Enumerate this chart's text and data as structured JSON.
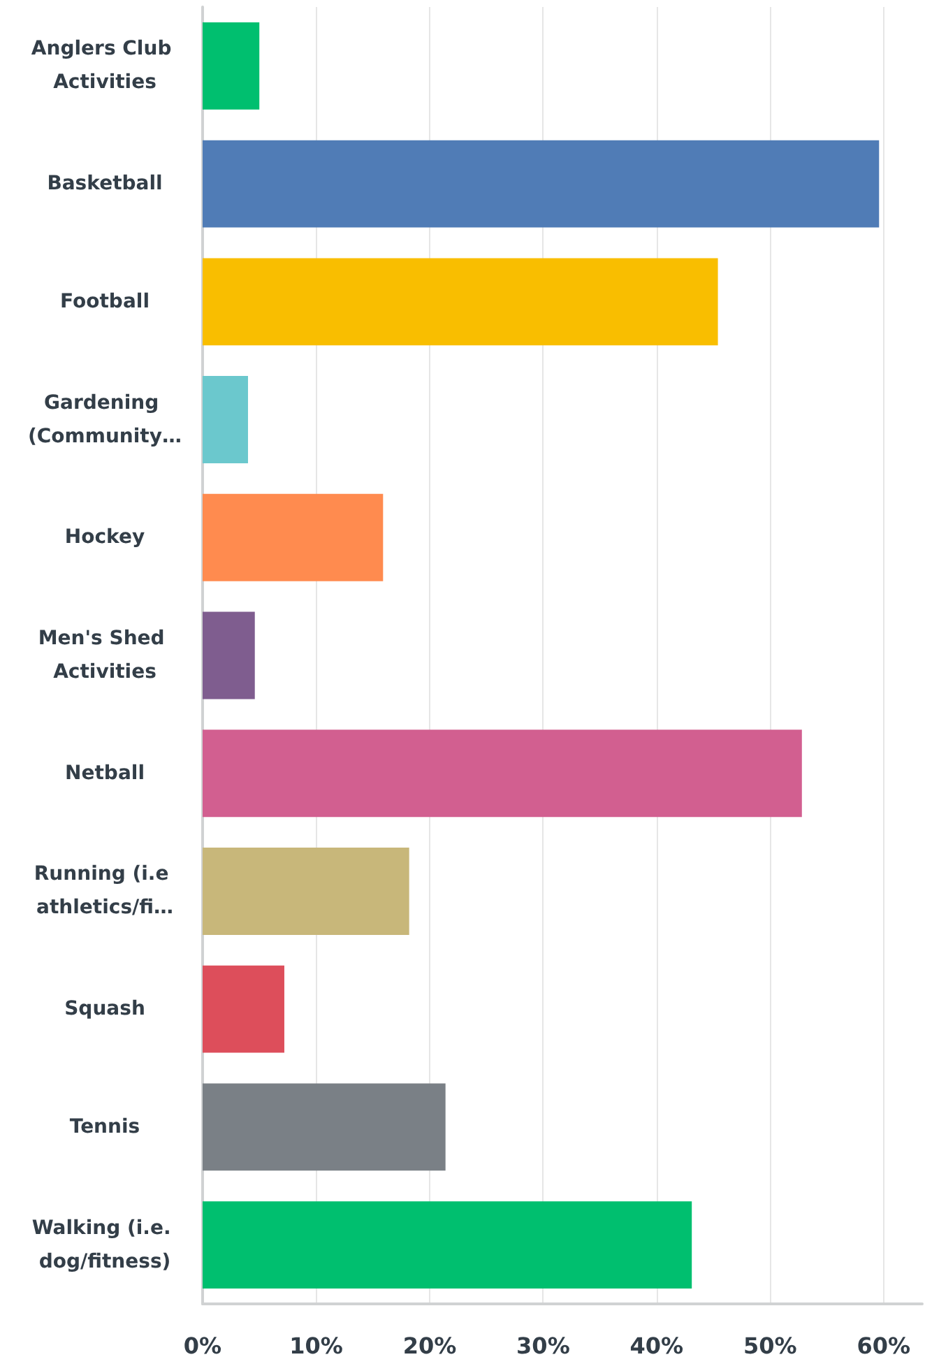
{
  "chart_data": {
    "type": "bar",
    "orientation": "horizontal",
    "categories": [
      "Anglers Club Activities",
      "Basketball",
      "Football",
      "Gardening (Community…",
      "Hockey",
      "Men's Shed Activities",
      "Netball",
      "Running (i.e athletics/fi…",
      "Squash",
      "Tennis",
      "Walking (i.e. dog/fitness)"
    ],
    "values": [
      5.0,
      59.6,
      45.4,
      4.0,
      15.9,
      4.6,
      52.8,
      18.2,
      7.2,
      21.4,
      43.1
    ],
    "colors": [
      "#00bf6f",
      "#507cb6",
      "#f9be00",
      "#6bc8cd",
      "#ff8b4f",
      "#7f5d8f",
      "#d25f90",
      "#c8b77a",
      "#dd4e5b",
      "#7a8086",
      "#00bf6f"
    ],
    "xlim": [
      0,
      63.4
    ],
    "xticks": [
      {
        "value": 0,
        "label": "0%"
      },
      {
        "value": 10,
        "label": "10%"
      },
      {
        "value": 20,
        "label": "20%"
      },
      {
        "value": 30,
        "label": "30%"
      },
      {
        "value": 40,
        "label": "40%"
      },
      {
        "value": 50,
        "label": "50%"
      },
      {
        "value": 60,
        "label": "60%"
      }
    ],
    "grid": "x"
  }
}
